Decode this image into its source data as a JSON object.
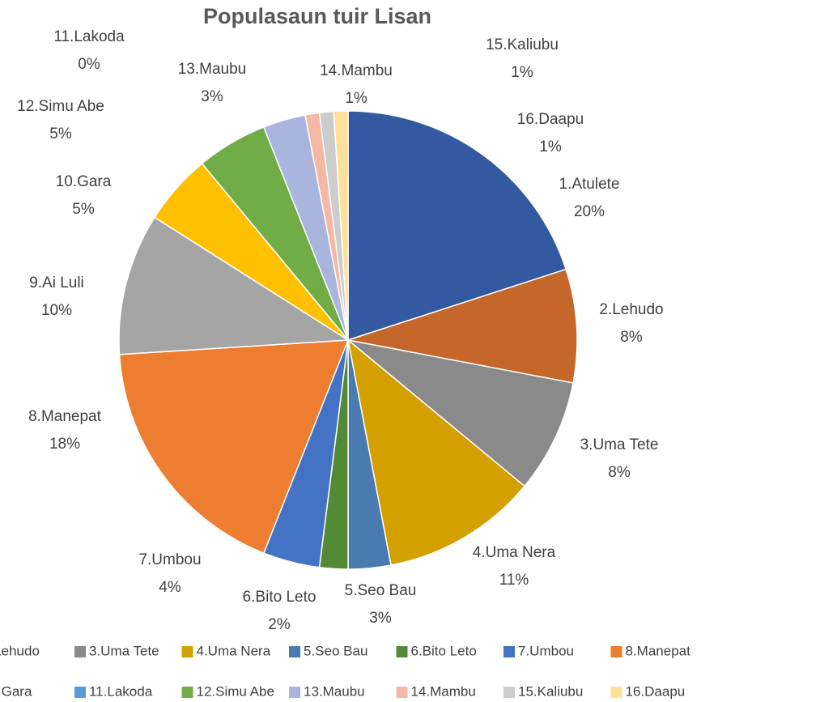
{
  "chart_data": {
    "type": "pie",
    "title": "Populasaun tuir Lisan",
    "categories": [
      "1.Atulete",
      "2.Lehudo",
      "3.Uma Tete",
      "4.Uma Nera",
      "5.Seo Bau",
      "6.Bito Leto",
      "7.Umbou",
      "8.Manepat",
      "9.Ai Luli",
      "10.Gara",
      "11.Lakoda",
      "12.Simu Abe",
      "13.Maubu",
      "14.Mambu",
      "15.Kaliubu",
      "16.Daapu"
    ],
    "values": [
      20,
      8,
      8,
      11,
      3,
      2,
      4,
      18,
      10,
      5,
      0,
      5,
      3,
      1,
      1,
      1
    ],
    "value_labels": [
      "20%",
      "8%",
      "8%",
      "11%",
      "3%",
      "2%",
      "4%",
      "18%",
      "10%",
      "5%",
      "0%",
      "5%",
      "3%",
      "1%",
      "1%",
      "1%"
    ],
    "colors": [
      "#335aa1",
      "#c5662a",
      "#8a8a8a",
      "#d4a000",
      "#4a7bb0",
      "#538a35",
      "#4472c4",
      "#ed7d31",
      "#a5a5a5",
      "#ffc000",
      "#5b9bd5",
      "#70ad47",
      "#a9b5dd",
      "#f4b9a6",
      "#cccccc",
      "#ffe09a"
    ],
    "legend": "bottom"
  }
}
